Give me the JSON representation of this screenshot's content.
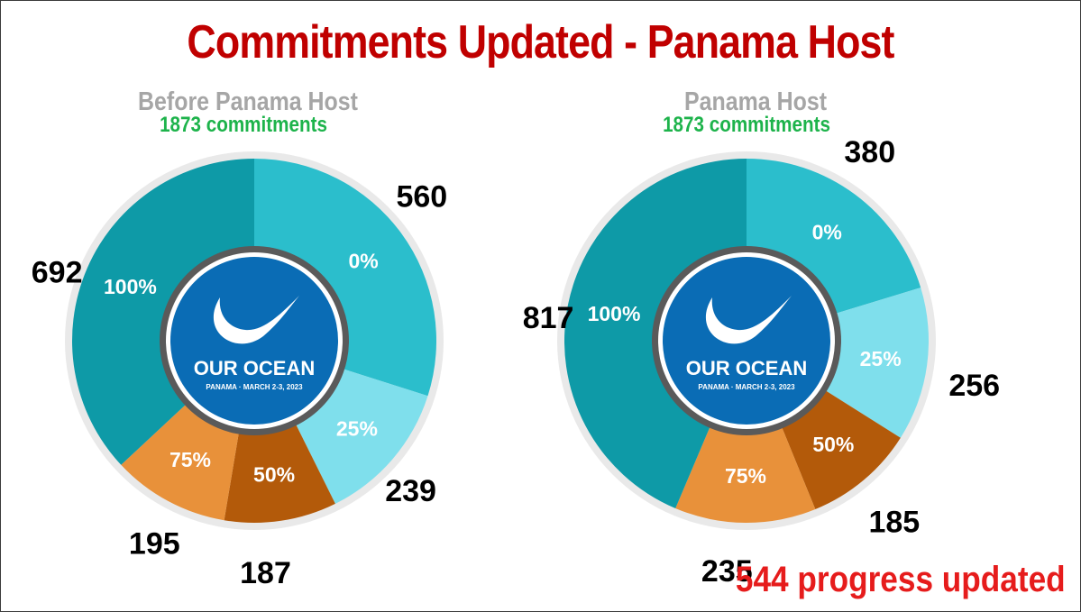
{
  "title": "Commitments Updated - Panama Host",
  "footer_note": "544 progress updated",
  "logo": {
    "name": "OUR OCEAN",
    "subtitle": "PANAMA · MARCH 2-3, 2023"
  },
  "colors": {
    "title": "#c00000",
    "chart_title": "#a6a6a6",
    "subtitle": "#1db34b",
    "footer": "#e61c1c",
    "pct_100": "#0e9aa7",
    "pct_0": "#2bbecc",
    "pct_25": "#7fdfec",
    "pct_50": "#b35a0a",
    "pct_75": "#e8913a",
    "logo_bg": "#0a6cb5"
  },
  "chart_data": [
    {
      "type": "pie",
      "title": "Before Panama Host",
      "subtitle": "1873 commitments",
      "slices": [
        {
          "label": "0%",
          "value": 560,
          "value_label": "560",
          "color_key": "pct_0"
        },
        {
          "label": "25%",
          "value": 239,
          "value_label": "239",
          "color_key": "pct_25"
        },
        {
          "label": "50%",
          "value": 187,
          "value_label": "187",
          "color_key": "pct_50"
        },
        {
          "label": "75%",
          "value": 195,
          "value_label": "195",
          "color_key": "pct_75"
        },
        {
          "label": "100%",
          "value": 692,
          "value_label": "692",
          "color_key": "pct_100"
        }
      ]
    },
    {
      "type": "pie",
      "title": "Panama Host",
      "subtitle": "1873 commitments",
      "slices": [
        {
          "label": "0%",
          "value": 380,
          "value_label": "380",
          "color_key": "pct_0"
        },
        {
          "label": "25%",
          "value": 256,
          "value_label": "256",
          "color_key": "pct_25"
        },
        {
          "label": "50%",
          "value": 185,
          "value_label": "185",
          "color_key": "pct_50"
        },
        {
          "label": "75%",
          "value": 235,
          "value_label": "235",
          "color_key": "pct_75"
        },
        {
          "label": "100%",
          "value": 817,
          "value_label": "817",
          "color_key": "pct_100"
        }
      ]
    }
  ]
}
